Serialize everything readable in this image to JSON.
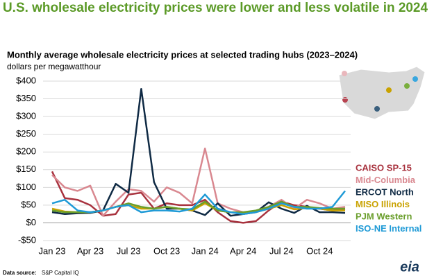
{
  "chart_data": {
    "type": "line",
    "title": "U.S. wholesale electricity prices were lower and less volatile in 2024",
    "subtitle": "Monthly average wholesale electricity prices at selected trading hubs (2023–2024)",
    "y_label": "dollars per megawatthour",
    "source_label": "Data source:",
    "source": "S&P Capital IQ",
    "logo": "eia",
    "categories": [
      "Jan 23",
      null,
      null,
      "Apr 23",
      null,
      null,
      "Jul 23",
      null,
      null,
      "Oct 23",
      null,
      null,
      "Jan 24",
      null,
      null,
      "Apr 24",
      null,
      null,
      "Jul 24",
      null,
      null,
      "Oct 24",
      null,
      null
    ],
    "ylim": [
      -50,
      400
    ],
    "yticks": [
      {
        "value": -50,
        "label": "-$50"
      },
      {
        "value": 0,
        "label": "$0"
      },
      {
        "value": 50,
        "label": "$50"
      },
      {
        "value": 100,
        "label": "$100"
      },
      {
        "value": 150,
        "label": "$150"
      },
      {
        "value": 200,
        "label": "$200"
      },
      {
        "value": 250,
        "label": "$250"
      },
      {
        "value": 300,
        "label": "$300"
      },
      {
        "value": 350,
        "label": "$350"
      },
      {
        "value": 400,
        "label": "$400"
      }
    ],
    "grid": true,
    "series": [
      {
        "name": "CAISO SP-15",
        "color": "#a8323e",
        "values": [
          145,
          70,
          65,
          50,
          20,
          25,
          80,
          85,
          40,
          55,
          50,
          50,
          65,
          30,
          5,
          0,
          5,
          35,
          60,
          50,
          45,
          40,
          35,
          40
        ]
      },
      {
        "name": "Mid-Columbia",
        "color": "#d98890",
        "values": [
          135,
          100,
          90,
          105,
          20,
          60,
          95,
          90,
          60,
          100,
          85,
          55,
          210,
          55,
          40,
          30,
          30,
          45,
          65,
          40,
          65,
          55,
          40,
          45
        ]
      },
      {
        "name": "ERCOT North",
        "color": "#0f2a44",
        "values": [
          30,
          25,
          27,
          28,
          35,
          110,
          85,
          378,
          115,
          40,
          40,
          35,
          22,
          55,
          20,
          25,
          30,
          58,
          40,
          28,
          48,
          30,
          30,
          28
        ]
      },
      {
        "name": "MISO Illinois",
        "color": "#c9a200",
        "values": [
          40,
          32,
          30,
          30,
          35,
          45,
          50,
          40,
          40,
          45,
          40,
          35,
          55,
          35,
          30,
          28,
          30,
          40,
          50,
          38,
          42,
          40,
          35,
          35
        ]
      },
      {
        "name": "PJM Western",
        "color": "#6a9e2c",
        "values": [
          35,
          30,
          30,
          30,
          35,
          45,
          55,
          45,
          40,
          45,
          40,
          38,
          60,
          35,
          30,
          30,
          35,
          45,
          60,
          45,
          45,
          42,
          40,
          40
        ]
      },
      {
        "name": "ISO-NE Internal",
        "color": "#1f9ad6",
        "values": [
          55,
          65,
          35,
          30,
          35,
          45,
          50,
          30,
          35,
          35,
          32,
          40,
          80,
          40,
          30,
          25,
          30,
          40,
          55,
          45,
          40,
          40,
          45,
          90
        ]
      }
    ]
  }
}
